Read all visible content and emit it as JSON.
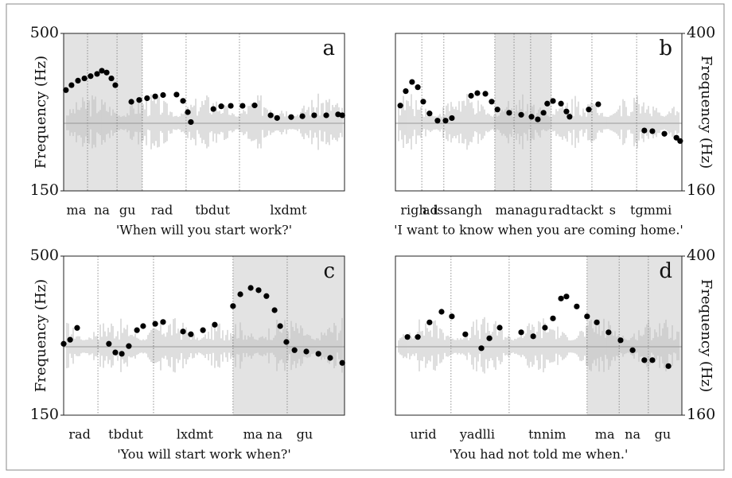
{
  "chart_data": [
    {
      "type": "scatter",
      "panel_label": "a",
      "caption": "'When will you start work?'",
      "ylabel": "Frequency (Hz)",
      "y_axis_side": "left",
      "color": "#000000",
      "xlim": [
        0,
        100
      ],
      "ylim": [
        150,
        500
      ],
      "yticks": [
        150,
        500
      ],
      "highlight": [
        [
          0,
          28
        ]
      ],
      "boundaries": [
        8.5,
        19,
        28,
        43.6,
        62.6
      ],
      "xticks": [
        {
          "value": 4.5,
          "label": "ma"
        },
        {
          "value": 13.6,
          "label": "na"
        },
        {
          "value": 22.7,
          "label": "gu"
        },
        {
          "value": 35,
          "label": "rad"
        },
        {
          "value": 53,
          "label": "tbdut"
        },
        {
          "value": 80,
          "label": "lxdmt"
        }
      ],
      "x": [
        0.8,
        2.8,
        5.1,
        7.4,
        9.6,
        11.9,
        13.6,
        15.3,
        17,
        18.4,
        24.1,
        26.9,
        29.7,
        32.6,
        35.4,
        40.2,
        42.5,
        44.2,
        45.3,
        53.3,
        56.1,
        59.5,
        63.7,
        68,
        73.7,
        76,
        81,
        85,
        89.2,
        93.5,
        97.7,
        99.2
      ],
      "values": [
        374,
        385,
        395,
        400,
        405,
        410,
        417,
        413,
        400,
        385,
        348,
        352,
        356,
        360,
        363,
        364,
        350,
        325,
        303,
        332,
        338,
        339,
        339,
        340,
        318,
        312,
        314,
        316,
        318,
        318,
        320,
        318
      ]
    },
    {
      "type": "scatter",
      "panel_label": "b",
      "caption": "'I want to know when you are coming home.'",
      "ylabel": "Frequency (Hz)",
      "y_axis_side": "right",
      "color": "#000000",
      "xlim": [
        0,
        100
      ],
      "ylim": [
        160,
        400
      ],
      "yticks": [
        160,
        400
      ],
      "highlight": [
        [
          34.7,
          54.4
        ]
      ],
      "boundaries": [
        9.2,
        16.9,
        34.7,
        41.4,
        47.2,
        54.4,
        68.6,
        84.2
      ],
      "xticks": [
        {
          "value": 6.4,
          "label": "righ"
        },
        {
          "value": 12.2,
          "label": "ad"
        },
        {
          "value": 21.7,
          "label": "issangh"
        },
        {
          "value": 43.9,
          "label": "managu"
        },
        {
          "value": 57.2,
          "label": "rad"
        },
        {
          "value": 66.9,
          "label": "tackt"
        },
        {
          "value": 75.8,
          "label": "s"
        },
        {
          "value": 89.2,
          "label": "tgmmi"
        }
      ],
      "x": [
        1.7,
        3.6,
        5.8,
        7.8,
        9.7,
        11.9,
        14.7,
        17.5,
        19.7,
        26.4,
        28.6,
        31.4,
        33.6,
        35.6,
        39.7,
        43.9,
        47.5,
        49.7,
        51.7,
        53,
        55,
        57.8,
        59.7,
        60.8,
        67.5,
        70.8,
        86.9,
        89.7,
        93.9,
        98.1,
        99.4
      ],
      "values": [
        290,
        312,
        326,
        318,
        296,
        278,
        267,
        267,
        271,
        305,
        309,
        308,
        296,
        284,
        279,
        276,
        273,
        269,
        279,
        293,
        297,
        293,
        281,
        273,
        284,
        292,
        252,
        251,
        247,
        241,
        236
      ]
    },
    {
      "type": "scatter",
      "panel_label": "c",
      "caption": "'You will start work when?'",
      "ylabel": "Frequency (Hz)",
      "y_axis_side": "left",
      "color": "#000000",
      "xlim": [
        0,
        100
      ],
      "ylim": [
        150,
        500
      ],
      "yticks": [
        150,
        500
      ],
      "highlight": [
        [
          60.3,
          100
        ]
      ],
      "boundaries": [
        12.2,
        32,
        60.3,
        79.6
      ],
      "xticks": [
        {
          "value": 5.7,
          "label": "rad"
        },
        {
          "value": 22.1,
          "label": "tbdut"
        },
        {
          "value": 46.7,
          "label": "lxdmt"
        },
        {
          "value": 67.4,
          "label": "ma"
        },
        {
          "value": 75.1,
          "label": "na"
        },
        {
          "value": 85.8,
          "label": "gu"
        }
      ],
      "x": [
        0,
        2.3,
        4.8,
        16.1,
        18.4,
        20.7,
        23.2,
        26.1,
        28.3,
        32.6,
        35.4,
        42.5,
        45.3,
        49.6,
        53.8,
        60.3,
        62.9,
        66.6,
        69.4,
        72.2,
        75.1,
        77.1,
        79.3,
        82.2,
        86.4,
        90.7,
        94.9,
        99.2
      ],
      "values": [
        307,
        316,
        342,
        307,
        288,
        285,
        302,
        337,
        346,
        351,
        355,
        334,
        328,
        337,
        349,
        390,
        416,
        430,
        425,
        412,
        381,
        346,
        311,
        293,
        290,
        285,
        276,
        265
      ]
    },
    {
      "type": "scatter",
      "panel_label": "d",
      "caption": "'You had not told me when.'",
      "ylabel": "Frequency (Hz)",
      "y_axis_side": "right",
      "color": "#000000",
      "xlim": [
        0,
        100
      ],
      "ylim": [
        160,
        400
      ],
      "yticks": [
        160,
        400
      ],
      "highlight": [
        [
          66.9,
          100
        ]
      ],
      "boundaries": [
        19.4,
        39.7,
        66.9,
        78.1,
        88.3
      ],
      "xticks": [
        {
          "value": 9.7,
          "label": "urid"
        },
        {
          "value": 28.6,
          "label": "yadlli"
        },
        {
          "value": 53,
          "label": "tnnim"
        },
        {
          "value": 73.1,
          "label": "ma"
        },
        {
          "value": 82.8,
          "label": "na"
        },
        {
          "value": 93.3,
          "label": "gu"
        }
      ],
      "x": [
        4.2,
        7.8,
        11.9,
        16.1,
        19.7,
        24.4,
        30,
        32.8,
        36.4,
        43.9,
        48.1,
        52.2,
        55,
        57.8,
        59.7,
        63.3,
        66.9,
        70.3,
        74.4,
        78.6,
        82.8,
        86.9,
        89.7,
        95.3
      ],
      "values": [
        278,
        278,
        300,
        316,
        309,
        282,
        261,
        276,
        292,
        285,
        279,
        292,
        306,
        336,
        339,
        324,
        309,
        300,
        285,
        273,
        258,
        243,
        243,
        234
      ]
    }
  ]
}
